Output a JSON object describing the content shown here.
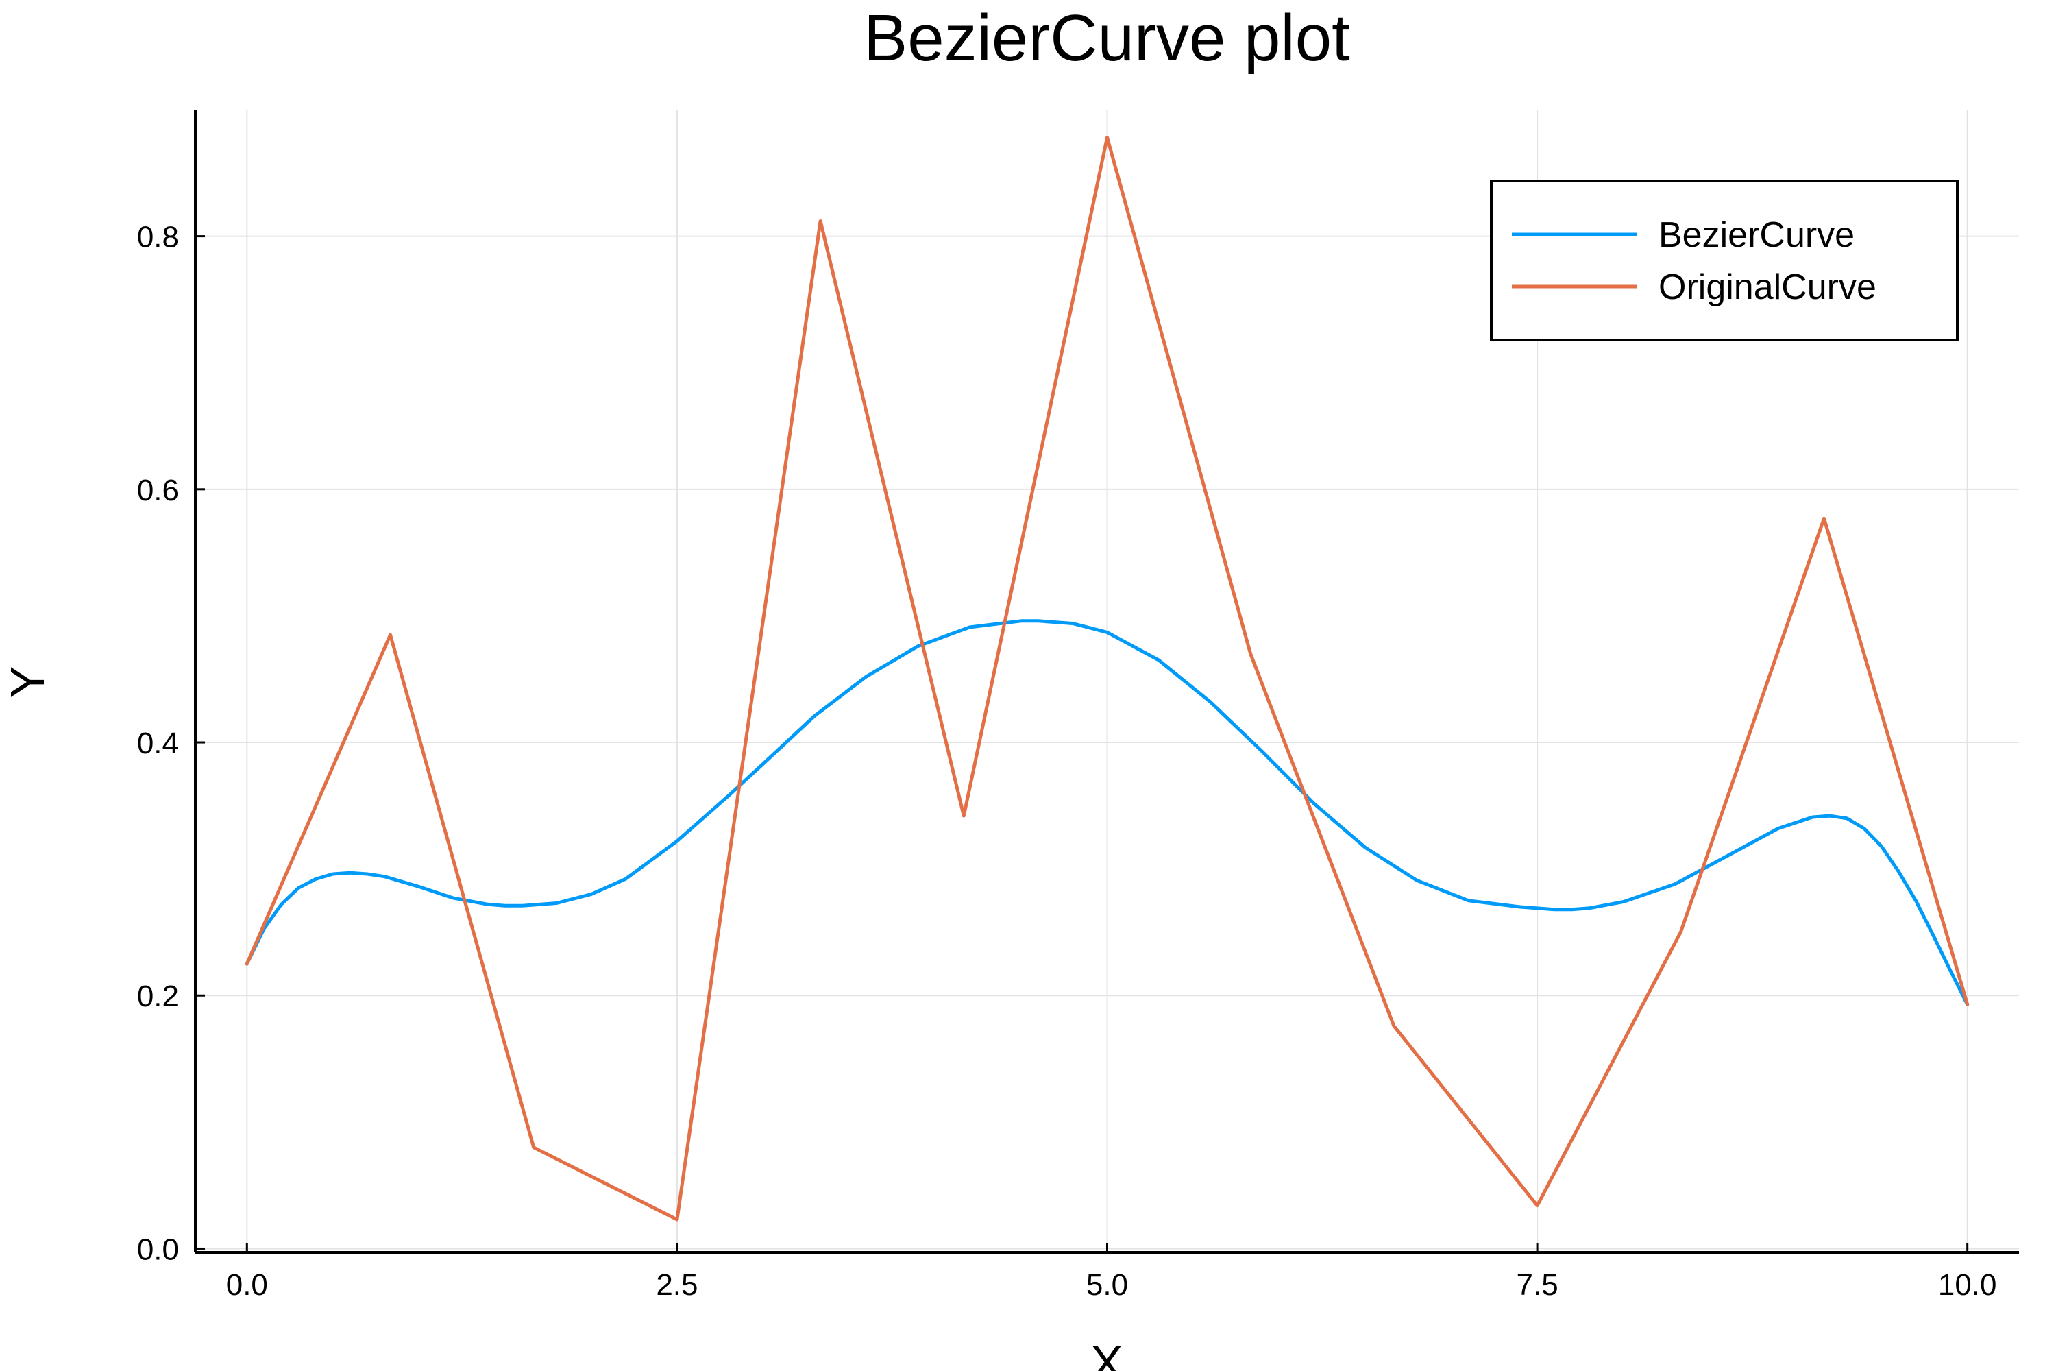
{
  "chart_data": {
    "type": "line",
    "title": "BezierCurve plot",
    "xlabel": "X",
    "ylabel": "Y",
    "xlim": [
      -0.3,
      10.3
    ],
    "ylim": [
      -0.003,
      0.9
    ],
    "xticks": [
      0.0,
      2.5,
      5.0,
      7.5,
      10.0
    ],
    "xtick_labels": [
      "0.0",
      "2.5",
      "5.0",
      "7.5",
      "10.0"
    ],
    "yticks": [
      0.0,
      0.2,
      0.4,
      0.6,
      0.8
    ],
    "ytick_labels": [
      "0.0",
      "0.2",
      "0.4",
      "0.6",
      "0.8"
    ],
    "grid": true,
    "legend_position": "top-right",
    "series": [
      {
        "name": "BezierCurve",
        "color": "#009af9",
        "x": [
          0.0,
          0.1,
          0.2,
          0.3,
          0.4,
          0.5,
          0.6,
          0.7,
          0.8,
          1.0,
          1.2,
          1.4,
          1.5,
          1.6,
          1.8,
          2.0,
          2.2,
          2.5,
          2.8,
          3.0,
          3.3,
          3.6,
          3.9,
          4.2,
          4.5,
          4.6,
          4.8,
          5.0,
          5.3,
          5.6,
          5.9,
          6.2,
          6.5,
          6.8,
          7.1,
          7.4,
          7.6,
          7.7,
          7.8,
          8.0,
          8.3,
          8.6,
          8.9,
          9.1,
          9.2,
          9.3,
          9.4,
          9.5,
          9.6,
          9.7,
          9.8,
          9.9,
          10.0
        ],
        "y": [
          0.225,
          0.253,
          0.272,
          0.285,
          0.292,
          0.296,
          0.297,
          0.296,
          0.294,
          0.286,
          0.277,
          0.272,
          0.271,
          0.271,
          0.273,
          0.28,
          0.292,
          0.322,
          0.358,
          0.383,
          0.421,
          0.452,
          0.476,
          0.491,
          0.496,
          0.496,
          0.494,
          0.487,
          0.465,
          0.432,
          0.393,
          0.352,
          0.317,
          0.291,
          0.275,
          0.27,
          0.268,
          0.268,
          0.269,
          0.274,
          0.288,
          0.31,
          0.332,
          0.341,
          0.342,
          0.34,
          0.332,
          0.318,
          0.298,
          0.275,
          0.248,
          0.22,
          0.193
        ]
      },
      {
        "name": "OriginalCurve",
        "color": "#e26f46",
        "x": [
          0.0,
          0.8333,
          1.6667,
          2.5,
          3.3333,
          4.1667,
          5.0,
          5.8333,
          6.6667,
          7.5,
          8.3333,
          9.1667,
          10.0
        ],
        "y": [
          0.225,
          0.485,
          0.08,
          0.023,
          0.812,
          0.342,
          0.878,
          0.47,
          0.176,
          0.034,
          0.25,
          0.577,
          0.193
        ]
      }
    ]
  }
}
